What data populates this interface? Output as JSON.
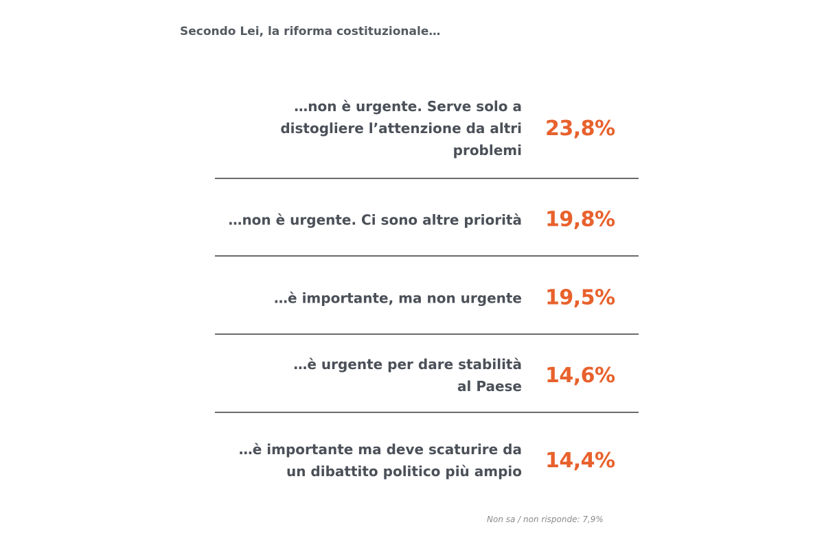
{
  "chart_data": {
    "type": "table",
    "title": "Secondo Lei, la riforma costituzionale…",
    "rows": [
      {
        "label": "…non è urgente. Serve solo a distogliere l’attenzione da altri problemi",
        "value": "23,8%"
      },
      {
        "label": "…non è urgente. Ci sono altre priorità",
        "value": "19,8%"
      },
      {
        "label": "…è importante, ma non urgente",
        "value": "19,5%"
      },
      {
        "label": "…è urgente per dare stabilità al Paese",
        "value": "14,6%"
      },
      {
        "label": "…è importante ma deve scaturire da un dibattito politico più ampio",
        "value": "14,4%"
      }
    ],
    "footnote": "Non sa / non risponde: 7,9%",
    "colors": {
      "value": "#e8612c",
      "label": "#4b5058",
      "divider": "#6a6a6a"
    }
  }
}
